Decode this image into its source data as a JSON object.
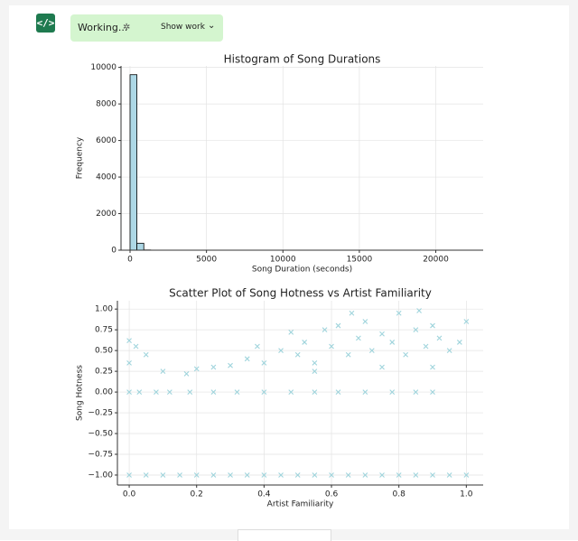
{
  "ui": {
    "status": "Working...",
    "button": "Show work"
  },
  "chart_data": [
    {
      "type": "histogram",
      "title": "Histogram of Song Durations",
      "x_label": "Song Duration (seconds)",
      "y_label": "Frequency",
      "bins": [
        0,
        450,
        900,
        1350,
        1800,
        2250,
        2700,
        3150,
        3600,
        4050,
        4500,
        4950,
        5400,
        5850,
        6300,
        6750,
        7200,
        7650,
        8100,
        8550,
        9000,
        9450,
        9900,
        10350,
        10800,
        11250,
        11700,
        12150,
        12600,
        13050,
        13500,
        13950,
        14400,
        14850,
        15300,
        15750,
        16200,
        16650,
        17100,
        17550,
        18000,
        18450,
        18900,
        19350,
        19800,
        20250,
        20700,
        21150,
        21600,
        22050,
        22500
      ],
      "values": [
        9600,
        380,
        12,
        4,
        2,
        1,
        0,
        0,
        0,
        0,
        0,
        0,
        0,
        0,
        0,
        0,
        0,
        0,
        0,
        0,
        0,
        0,
        0,
        0,
        0,
        0,
        0,
        0,
        0,
        0,
        0,
        0,
        0,
        0,
        0,
        0,
        0,
        0,
        0,
        0,
        0,
        0,
        0,
        0,
        0,
        0,
        0,
        0,
        0,
        1
      ],
      "color": "#add8e6",
      "edge_color": "#000000",
      "xlim": [
        -590,
        23100
      ],
      "xticks": [
        0,
        5000,
        10000,
        15000,
        20000
      ],
      "ylim": [
        0,
        10080
      ],
      "yticks": [
        0,
        2000,
        4000,
        6000,
        8000,
        10000
      ],
      "grid": true
    },
    {
      "type": "scatter",
      "title": "Scatter Plot of Song Hotness vs Artist Familiarity",
      "x_label": "Artist Familiarity",
      "y_label": "Song Hotness",
      "x": [
        0.0,
        0.05,
        0.1,
        0.15,
        0.2,
        0.25,
        0.3,
        0.35,
        0.4,
        0.45,
        0.5,
        0.55,
        0.6,
        0.65,
        0.7,
        0.75,
        0.8,
        0.85,
        0.9,
        0.95,
        1.0,
        0.0,
        0.03,
        0.08,
        0.12,
        0.18,
        0.25,
        0.32,
        0.4,
        0.48,
        0.55,
        0.62,
        0.7,
        0.78,
        0.85,
        0.9,
        0.0,
        0.02,
        0.0,
        0.05,
        0.1,
        0.17,
        0.2,
        0.25,
        0.3,
        0.35,
        0.38,
        0.4,
        0.45,
        0.48,
        0.5,
        0.52,
        0.55,
        0.58,
        0.6,
        0.62,
        0.65,
        0.68,
        0.7,
        0.72,
        0.75,
        0.78,
        0.8,
        0.82,
        0.85,
        0.88,
        0.9,
        0.92,
        0.95,
        0.98,
        1.0,
        0.66,
        0.86,
        0.55,
        0.75,
        0.9
      ],
      "values": [
        -1,
        -1,
        -1,
        -1,
        -1,
        -1,
        -1,
        -1,
        -1,
        -1,
        -1,
        -1,
        -1,
        -1,
        -1,
        -1,
        -1,
        -1,
        -1,
        -1,
        -1,
        0,
        0,
        0,
        0,
        0,
        0,
        0,
        0,
        0,
        0,
        0,
        0,
        0,
        0,
        0,
        0.62,
        0.55,
        0.35,
        0.45,
        0.25,
        0.22,
        0.28,
        0.3,
        0.32,
        0.4,
        0.55,
        0.35,
        0.5,
        0.72,
        0.45,
        0.6,
        0.35,
        0.75,
        0.55,
        0.8,
        0.45,
        0.65,
        0.85,
        0.5,
        0.7,
        0.6,
        0.95,
        0.45,
        0.75,
        0.55,
        0.8,
        0.65,
        0.5,
        0.6,
        0.85,
        0.95,
        0.98,
        0.25,
        0.3,
        0.3
      ],
      "color": "#9fd4dc",
      "marker": "x",
      "xlim": [
        -0.035,
        1.05
      ],
      "xticks": [
        {
          "value": 0,
          "label": "0.0"
        },
        {
          "value": 0.2,
          "label": "0.2"
        },
        {
          "value": 0.4,
          "label": "0.4"
        },
        {
          "value": 0.6,
          "label": "0.6"
        },
        {
          "value": 0.8,
          "label": "0.8"
        },
        {
          "value": 1,
          "label": "1.0"
        }
      ],
      "ylim": [
        -1.12,
        1.1
      ],
      "yticks": [
        {
          "value": -1,
          "label": "−1.00"
        },
        {
          "value": -0.75,
          "label": "−0.75"
        },
        {
          "value": -0.5,
          "label": "−0.50"
        },
        {
          "value": -0.25,
          "label": "−0.25"
        },
        {
          "value": 0,
          "label": "0.00"
        },
        {
          "value": 0.25,
          "label": "0.25"
        },
        {
          "value": 0.5,
          "label": "0.50"
        },
        {
          "value": 0.75,
          "label": "0.75"
        },
        {
          "value": 1,
          "label": "1.00"
        }
      ],
      "grid": true
    }
  ]
}
